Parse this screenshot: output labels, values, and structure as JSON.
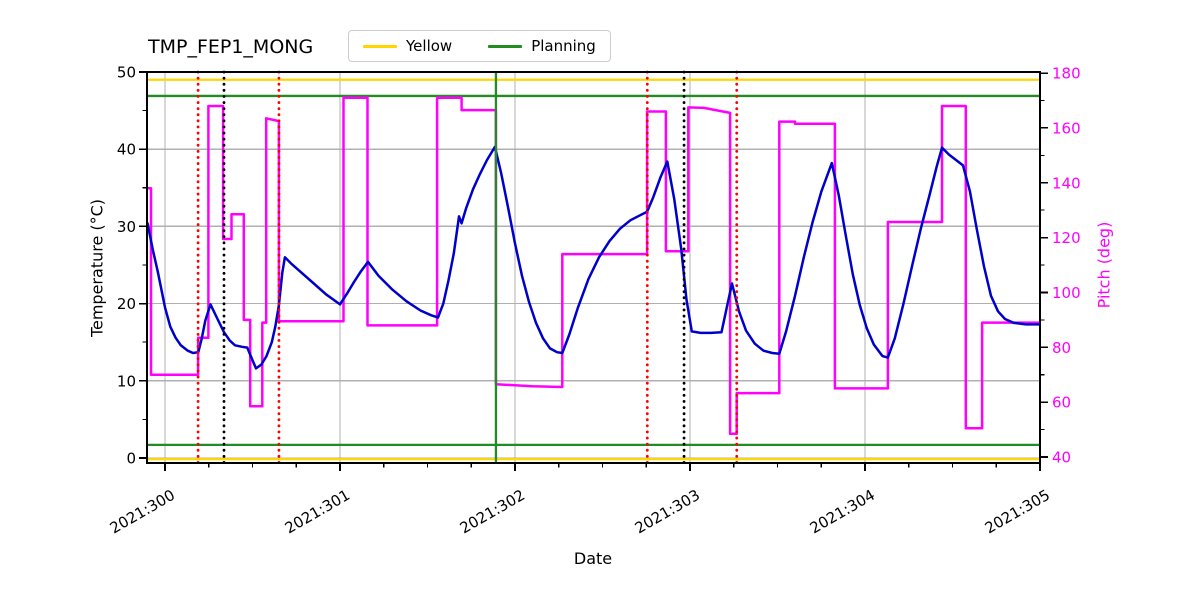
{
  "title": "TMP_FEP1_MONG",
  "legend": {
    "position": "upper center",
    "items": [
      {
        "label": "Yellow",
        "color": "#ffd700"
      },
      {
        "label": "Planning",
        "color": "#228b22"
      }
    ]
  },
  "chart_data": {
    "type": "line",
    "title": "TMP_FEP1_MONG",
    "xlabel": "Date",
    "ylabel_left": "Temperature (°C)",
    "ylabel_right": "Pitch (deg)",
    "grid": true,
    "grid_color": "#b0b0b0",
    "xlim": [
      299.897,
      305.0
    ],
    "ylim_left": [
      -0.65,
      50.0
    ],
    "ylim_right": [
      37.8,
      180.4
    ],
    "x_ticks": {
      "values": [
        300,
        301,
        302,
        303,
        304,
        305
      ],
      "labels": [
        "2021:300",
        "2021:301",
        "2021:302",
        "2021:303",
        "2021:304",
        "2021:305"
      ],
      "minor_step": 0.25
    },
    "yticks_left": {
      "values": [
        0,
        10,
        20,
        30,
        40,
        50
      ],
      "minor": [
        5,
        15,
        25,
        35,
        45
      ]
    },
    "yticks_right": {
      "values": [
        40,
        60,
        80,
        100,
        120,
        140,
        160,
        180
      ],
      "minor": [
        50,
        70,
        90,
        110,
        130,
        150,
        170
      ],
      "label_color": "#ff00ff"
    },
    "hlines": [
      {
        "y": 49.0,
        "color": "#ffd700"
      },
      {
        "y": 46.9,
        "color": "#228b22"
      },
      {
        "y": 1.7,
        "color": "#228b22"
      },
      {
        "y": -0.15,
        "color": "#ffd700"
      }
    ],
    "vlines": [
      {
        "x": 300.189,
        "color": "#ff0000",
        "style": "dotted"
      },
      {
        "x": 300.337,
        "color": "#000000",
        "style": "dotted"
      },
      {
        "x": 300.651,
        "color": "#ff0000",
        "style": "dotted"
      },
      {
        "x": 301.891,
        "color": "#228b22",
        "style": "solid"
      },
      {
        "x": 302.756,
        "color": "#ff0000",
        "style": "dotted"
      },
      {
        "x": 302.966,
        "color": "#000000",
        "style": "dotted"
      },
      {
        "x": 303.267,
        "color": "#ff0000",
        "style": "dotted"
      }
    ],
    "series": [
      {
        "name": "Pitch",
        "axis": "right",
        "color": "#ff00ff",
        "width": 2.5,
        "points": [
          [
            299.9,
            138
          ],
          [
            299.92,
            138
          ],
          [
            299.92,
            70
          ],
          [
            300.189,
            70
          ],
          [
            300.189,
            83.5
          ],
          [
            300.248,
            83.5
          ],
          [
            300.248,
            168
          ],
          [
            300.332,
            168
          ],
          [
            300.332,
            119.5
          ],
          [
            300.38,
            119.5
          ],
          [
            300.38,
            128.5
          ],
          [
            300.45,
            128.5
          ],
          [
            300.45,
            90
          ],
          [
            300.487,
            90
          ],
          [
            300.487,
            58.5
          ],
          [
            300.556,
            58.5
          ],
          [
            300.556,
            89
          ],
          [
            300.578,
            89
          ],
          [
            300.578,
            163.5
          ],
          [
            300.651,
            162.5
          ],
          [
            300.651,
            89.5
          ],
          [
            301.02,
            89.5
          ],
          [
            301.02,
            171
          ],
          [
            301.157,
            171
          ],
          [
            301.157,
            88
          ],
          [
            301.555,
            88
          ],
          [
            301.555,
            171
          ],
          [
            301.695,
            171
          ],
          [
            301.695,
            166.5
          ],
          [
            301.891,
            166.5
          ],
          [
            301.891,
            66.5
          ],
          [
            302.1,
            65.8
          ],
          [
            302.27,
            65.5
          ],
          [
            302.27,
            114
          ],
          [
            302.755,
            114
          ],
          [
            302.755,
            166
          ],
          [
            302.862,
            166
          ],
          [
            302.862,
            115
          ],
          [
            302.99,
            115
          ],
          [
            302.99,
            167.5
          ],
          [
            303.08,
            167.3
          ],
          [
            303.229,
            165.5
          ],
          [
            303.229,
            48.5
          ],
          [
            303.267,
            48.5
          ],
          [
            303.267,
            63.3
          ],
          [
            303.51,
            63.3
          ],
          [
            303.51,
            162.3
          ],
          [
            303.6,
            162.3
          ],
          [
            303.6,
            161.5
          ],
          [
            303.828,
            161.5
          ],
          [
            303.828,
            65
          ],
          [
            304.131,
            65
          ],
          [
            304.131,
            125.7
          ],
          [
            304.44,
            125.7
          ],
          [
            304.44,
            168
          ],
          [
            304.576,
            168
          ],
          [
            304.576,
            50.5
          ],
          [
            304.669,
            50.5
          ],
          [
            304.669,
            89
          ],
          [
            305.0,
            89
          ]
        ]
      },
      {
        "name": "Temperature",
        "axis": "left",
        "color": "#0000cd",
        "width": 2.5,
        "points": [
          [
            299.9,
            30.4
          ],
          [
            299.93,
            27.0
          ],
          [
            299.96,
            24.0
          ],
          [
            300.0,
            19.5
          ],
          [
            300.03,
            17.0
          ],
          [
            300.06,
            15.6
          ],
          [
            300.09,
            14.6
          ],
          [
            300.13,
            13.9
          ],
          [
            300.16,
            13.6
          ],
          [
            300.19,
            13.7
          ],
          [
            300.21,
            15.5
          ],
          [
            300.23,
            17.8
          ],
          [
            300.26,
            19.9
          ],
          [
            300.3,
            18.0
          ],
          [
            300.337,
            16.3
          ],
          [
            300.37,
            15.2
          ],
          [
            300.4,
            14.6
          ],
          [
            300.44,
            14.4
          ],
          [
            300.47,
            14.3
          ],
          [
            300.49,
            13.2
          ],
          [
            300.52,
            11.6
          ],
          [
            300.55,
            12.1
          ],
          [
            300.58,
            13.2
          ],
          [
            300.61,
            15.0
          ],
          [
            300.63,
            17.0
          ],
          [
            300.651,
            19.8
          ],
          [
            300.67,
            24.0
          ],
          [
            300.685,
            26.0
          ],
          [
            300.72,
            25.2
          ],
          [
            300.78,
            24.0
          ],
          [
            300.85,
            22.6
          ],
          [
            300.92,
            21.2
          ],
          [
            301.0,
            19.9
          ],
          [
            301.04,
            21.3
          ],
          [
            301.08,
            22.8
          ],
          [
            301.12,
            24.2
          ],
          [
            301.16,
            25.4
          ],
          [
            301.22,
            23.6
          ],
          [
            301.3,
            21.8
          ],
          [
            301.38,
            20.3
          ],
          [
            301.46,
            19.1
          ],
          [
            301.52,
            18.5
          ],
          [
            301.56,
            18.2
          ],
          [
            301.59,
            20.0
          ],
          [
            301.62,
            23.0
          ],
          [
            301.65,
            26.5
          ],
          [
            301.68,
            31.3
          ],
          [
            301.695,
            30.4
          ],
          [
            301.72,
            32.3
          ],
          [
            301.76,
            34.8
          ],
          [
            301.8,
            36.8
          ],
          [
            301.84,
            38.6
          ],
          [
            301.885,
            40.3
          ],
          [
            301.92,
            37.0
          ],
          [
            301.96,
            32.5
          ],
          [
            302.0,
            27.8
          ],
          [
            302.04,
            23.6
          ],
          [
            302.08,
            20.2
          ],
          [
            302.12,
            17.5
          ],
          [
            302.16,
            15.5
          ],
          [
            302.2,
            14.2
          ],
          [
            302.24,
            13.7
          ],
          [
            302.27,
            13.6
          ],
          [
            302.31,
            16.0
          ],
          [
            302.36,
            19.5
          ],
          [
            302.42,
            23.2
          ],
          [
            302.48,
            26.0
          ],
          [
            302.54,
            28.1
          ],
          [
            302.6,
            29.7
          ],
          [
            302.66,
            30.8
          ],
          [
            302.72,
            31.5
          ],
          [
            302.755,
            31.9
          ],
          [
            302.79,
            33.8
          ],
          [
            302.83,
            36.3
          ],
          [
            302.87,
            38.4
          ],
          [
            302.91,
            33.5
          ],
          [
            302.95,
            27.0
          ],
          [
            302.98,
            20.5
          ],
          [
            303.01,
            16.4
          ],
          [
            303.06,
            16.2
          ],
          [
            303.12,
            16.2
          ],
          [
            303.18,
            16.3
          ],
          [
            303.21,
            19.5
          ],
          [
            303.24,
            22.6
          ],
          [
            303.28,
            19.0
          ],
          [
            303.32,
            16.5
          ],
          [
            303.37,
            14.8
          ],
          [
            303.42,
            13.9
          ],
          [
            303.47,
            13.6
          ],
          [
            303.51,
            13.5
          ],
          [
            303.55,
            16.5
          ],
          [
            303.6,
            21.0
          ],
          [
            303.65,
            26.0
          ],
          [
            303.7,
            30.5
          ],
          [
            303.75,
            34.5
          ],
          [
            303.81,
            38.2
          ],
          [
            303.85,
            34.0
          ],
          [
            303.89,
            28.8
          ],
          [
            303.93,
            23.8
          ],
          [
            303.97,
            19.8
          ],
          [
            304.01,
            16.8
          ],
          [
            304.05,
            14.7
          ],
          [
            304.1,
            13.2
          ],
          [
            304.13,
            13.0
          ],
          [
            304.17,
            15.5
          ],
          [
            304.22,
            20.0
          ],
          [
            304.27,
            25.0
          ],
          [
            304.32,
            29.8
          ],
          [
            304.37,
            34.2
          ],
          [
            304.41,
            37.8
          ],
          [
            304.44,
            40.2
          ],
          [
            304.48,
            39.3
          ],
          [
            304.52,
            38.6
          ],
          [
            304.56,
            37.9
          ],
          [
            304.6,
            34.5
          ],
          [
            304.64,
            29.5
          ],
          [
            304.68,
            24.8
          ],
          [
            304.72,
            21.0
          ],
          [
            304.76,
            19.0
          ],
          [
            304.8,
            18.0
          ],
          [
            304.85,
            17.5
          ],
          [
            304.92,
            17.3
          ],
          [
            305.0,
            17.3
          ]
        ]
      }
    ]
  }
}
